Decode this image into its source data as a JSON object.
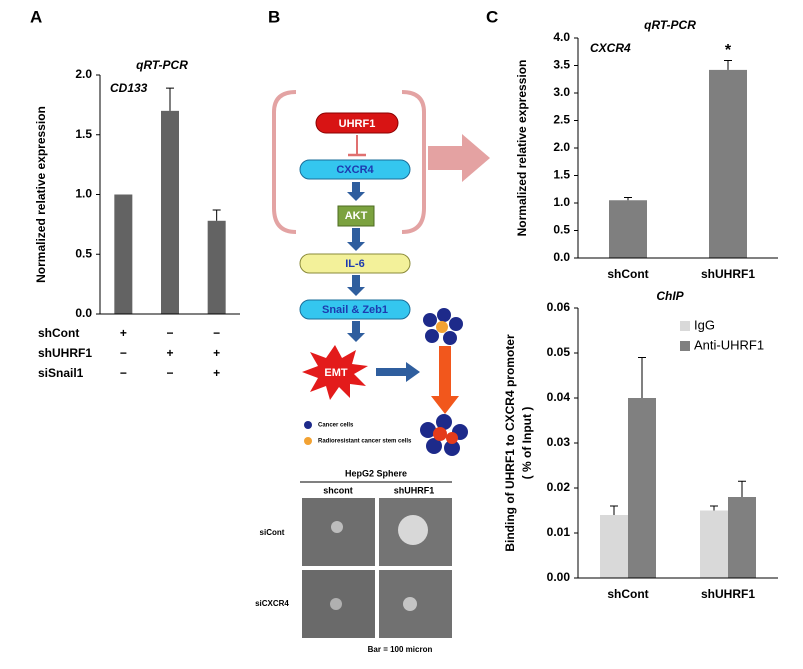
{
  "panels": [
    "A",
    "B",
    "C"
  ],
  "chart_data": [
    {
      "type": "bar",
      "title": "qRT-PCR",
      "gene": "CD133",
      "ylabel": "Normalized relative expression",
      "categories": [
        null,
        null,
        null
      ],
      "values": [
        1.0,
        1.7,
        0.78
      ],
      "errors": [
        null,
        0.19,
        0.09
      ],
      "color": "#636363",
      "ylim": [
        0,
        2
      ],
      "yticks": [
        {
          "value": 0,
          "label": "0.0"
        },
        {
          "value": 0.5,
          "label": "0.5"
        },
        {
          "value": 1,
          "label": "1.0"
        },
        {
          "value": 1.5,
          "label": "1.5"
        },
        {
          "value": 2,
          "label": "2.0"
        }
      ],
      "conditions": [
        {
          "name": "shCont",
          "marks": [
            "+",
            "−",
            "−"
          ]
        },
        {
          "name": "shUHRF1",
          "marks": [
            "−",
            "+",
            "+"
          ]
        },
        {
          "name": "siSnail1",
          "marks": [
            "−",
            "−",
            "+"
          ]
        }
      ]
    },
    {
      "type": "bar",
      "title": "qRT-PCR",
      "gene": "CXCR4",
      "ylabel": "Normalized relative expression",
      "categories": [
        "shCont",
        "shUHRF1"
      ],
      "values": [
        1.05,
        3.42
      ],
      "errors": [
        0.05,
        0.17
      ],
      "significance": [
        null,
        "*"
      ],
      "color": "#7f7f7f",
      "ylim": [
        0,
        4
      ],
      "yticks": [
        {
          "value": 0,
          "label": "0.0"
        },
        {
          "value": 0.5,
          "label": "0.5"
        },
        {
          "value": 1,
          "label": "1.0"
        },
        {
          "value": 1.5,
          "label": "1.5"
        },
        {
          "value": 2,
          "label": "2.0"
        },
        {
          "value": 2.5,
          "label": "2.5"
        },
        {
          "value": 3,
          "label": "3.0"
        },
        {
          "value": 3.5,
          "label": "3.5"
        },
        {
          "value": 4,
          "label": "4.0"
        }
      ]
    },
    {
      "type": "bar",
      "title": "ChIP",
      "ylabel": [
        "Binding of UHRF1 to CXCR4  promoter",
        "( % of Input )"
      ],
      "categories": [
        "shCont",
        "shUHRF1"
      ],
      "legend": "upper right",
      "series": [
        {
          "name": "IgG",
          "color": "#d9d9d9",
          "values": [
            0.014,
            0.015
          ],
          "errors": [
            0.002,
            0.001
          ]
        },
        {
          "name": "Anti-UHRF1",
          "color": "#808080",
          "values": [
            0.04,
            0.018
          ],
          "errors": [
            0.009,
            0.0035
          ]
        }
      ],
      "ylim": [
        0,
        0.06
      ],
      "yticks": [
        {
          "value": 0,
          "label": "0.00"
        },
        {
          "value": 0.01,
          "label": "0.01"
        },
        {
          "value": 0.02,
          "label": "0.02"
        },
        {
          "value": 0.03,
          "label": "0.03"
        },
        {
          "value": 0.04,
          "label": "0.04"
        },
        {
          "value": 0.05,
          "label": "0.05"
        },
        {
          "value": 0.06,
          "label": "0.06"
        }
      ]
    }
  ],
  "diagram": {
    "nodes": [
      "UHRF1",
      "CXCR4",
      "AKT",
      "IL-6",
      "Snail & Zeb1",
      "EMT"
    ],
    "legend": [
      "Cancer cells",
      "Radioresistant cancer stem cells"
    ],
    "micrograph": {
      "title": "HepG2 Sphere",
      "columns": [
        "shcont",
        "shUHRF1"
      ],
      "rows": [
        "siCont",
        "siCXCR4"
      ],
      "caption": "Bar = 100 micron"
    }
  }
}
